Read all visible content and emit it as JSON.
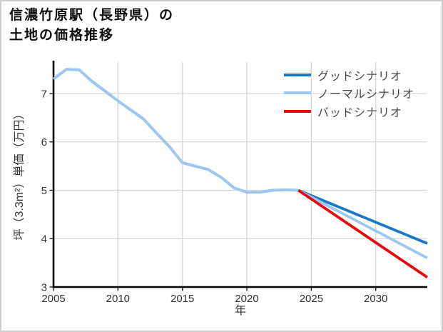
{
  "header": {
    "title_lines": [
      "信濃竹原駅（長野県）の",
      "土地の価格推移"
    ]
  },
  "chart_data": {
    "type": "line",
    "title": "信濃竹原駅（長野県）の土地の価格推移",
    "xlabel": "年",
    "ylabel": "坪（3.3m²）単価（万円）",
    "xlim": [
      2005,
      2034
    ],
    "ylim": [
      3,
      7.65
    ],
    "x_ticks": [
      2005,
      2010,
      2015,
      2020,
      2025,
      2030
    ],
    "y_ticks": [
      3,
      4,
      5,
      6,
      7
    ],
    "grid": true,
    "legend_position": "inside-top-right",
    "colors": {
      "grid": "#d6d6d6",
      "axis": "#000000",
      "tick_label": "#333333",
      "legend_text": "#4a4a4a",
      "good": "#1b78c8",
      "normal": "#9ec7ef",
      "bad": "#e9090c"
    },
    "history": {
      "color": "#9ec7ef",
      "x": [
        2005,
        2006,
        2007,
        2008,
        2009,
        2010,
        2011,
        2012,
        2013,
        2014,
        2015,
        2016,
        2017,
        2018,
        2019,
        2020,
        2021,
        2022,
        2023,
        2024
      ],
      "values": [
        7.3,
        7.5,
        7.49,
        7.25,
        7.05,
        6.85,
        6.66,
        6.47,
        6.18,
        5.9,
        5.57,
        5.5,
        5.43,
        5.27,
        5.05,
        4.96,
        4.96,
        5.0,
        5.01,
        5.0
      ]
    },
    "series": [
      {
        "name": "グッドシナリオ",
        "color": "#1b78c8",
        "x": [
          2024,
          2034
        ],
        "values": [
          5.0,
          3.9
        ]
      },
      {
        "name": "ノーマルシナリオ",
        "color": "#9ec7ef",
        "x": [
          2024,
          2034
        ],
        "values": [
          5.0,
          3.6
        ]
      },
      {
        "name": "バッドシナリオ",
        "color": "#e9090c",
        "x": [
          2024,
          2034
        ],
        "values": [
          5.0,
          3.2
        ]
      }
    ]
  }
}
